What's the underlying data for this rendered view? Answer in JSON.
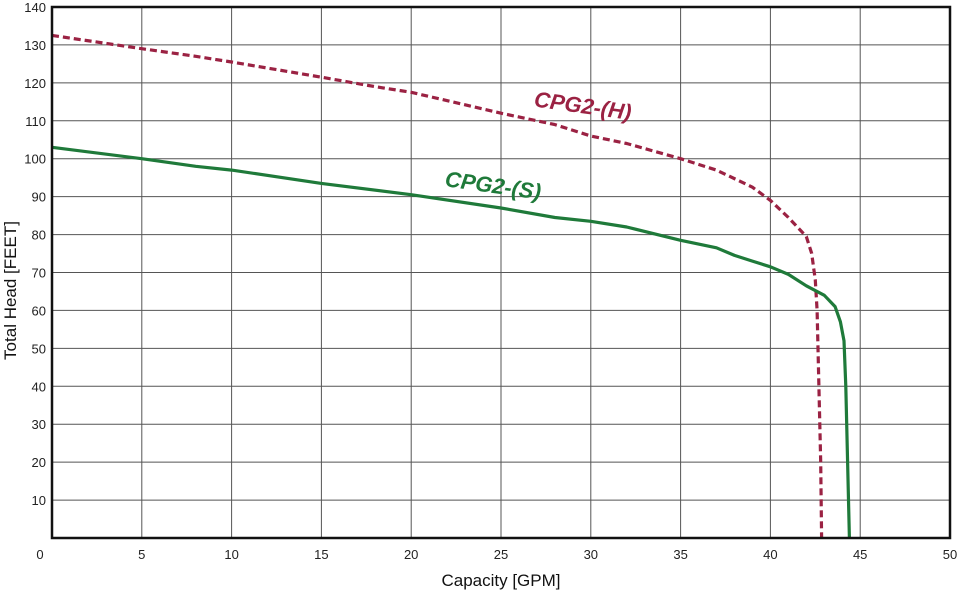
{
  "chart_data": {
    "type": "line",
    "title": "",
    "xlabel": "Capacity [GPM]",
    "ylabel": "Total Head [FEET]",
    "xlim": [
      0,
      50
    ],
    "ylim": [
      0,
      140
    ],
    "xticks": [
      0,
      5,
      10,
      15,
      20,
      25,
      30,
      35,
      40,
      45,
      50
    ],
    "yticks": [
      10,
      20,
      30,
      40,
      50,
      60,
      70,
      80,
      90,
      100,
      110,
      120,
      130,
      140
    ],
    "grid": true,
    "legend": "inline labels",
    "series": [
      {
        "name": "CPG2-(H)",
        "color": "#9b2243",
        "style": "dashed",
        "points": [
          [
            0,
            132.5
          ],
          [
            5,
            129
          ],
          [
            8,
            127
          ],
          [
            10,
            125.5
          ],
          [
            15,
            121.5
          ],
          [
            18,
            119
          ],
          [
            20,
            117.5
          ],
          [
            25,
            112
          ],
          [
            28,
            109
          ],
          [
            30,
            106
          ],
          [
            32,
            104
          ],
          [
            35,
            100
          ],
          [
            37,
            97
          ],
          [
            39,
            92.5
          ],
          [
            40,
            89
          ],
          [
            41,
            84.5
          ],
          [
            42,
            79.5
          ],
          [
            42.3,
            75
          ],
          [
            42.5,
            68
          ],
          [
            42.6,
            60
          ],
          [
            42.7,
            40
          ],
          [
            42.8,
            20
          ],
          [
            42.85,
            0
          ]
        ]
      },
      {
        "name": "CPG2-(S)",
        "color": "#1f7a3a",
        "style": "solid",
        "points": [
          [
            0,
            103
          ],
          [
            5,
            100
          ],
          [
            8,
            98
          ],
          [
            10,
            97
          ],
          [
            15,
            93.5
          ],
          [
            20,
            90.5
          ],
          [
            25,
            87
          ],
          [
            28,
            84.5
          ],
          [
            30,
            83.5
          ],
          [
            32,
            82
          ],
          [
            35,
            78.5
          ],
          [
            37,
            76.5
          ],
          [
            38,
            74.5
          ],
          [
            39,
            73
          ],
          [
            40,
            71.5
          ],
          [
            41,
            69.5
          ],
          [
            42,
            66.5
          ],
          [
            43,
            64
          ],
          [
            43.6,
            61
          ],
          [
            43.9,
            57
          ],
          [
            44.1,
            52
          ],
          [
            44.2,
            40
          ],
          [
            44.3,
            20
          ],
          [
            44.4,
            0
          ]
        ]
      }
    ],
    "annotations": [
      {
        "text": "CPG2-(H)",
        "x": 29.5,
        "y": 112,
        "rotate": 8,
        "color": "#9b2243"
      },
      {
        "text": "CPG2-(S)",
        "x": 24.5,
        "y": 91,
        "rotate": 8,
        "color": "#1f7a3a"
      }
    ]
  }
}
